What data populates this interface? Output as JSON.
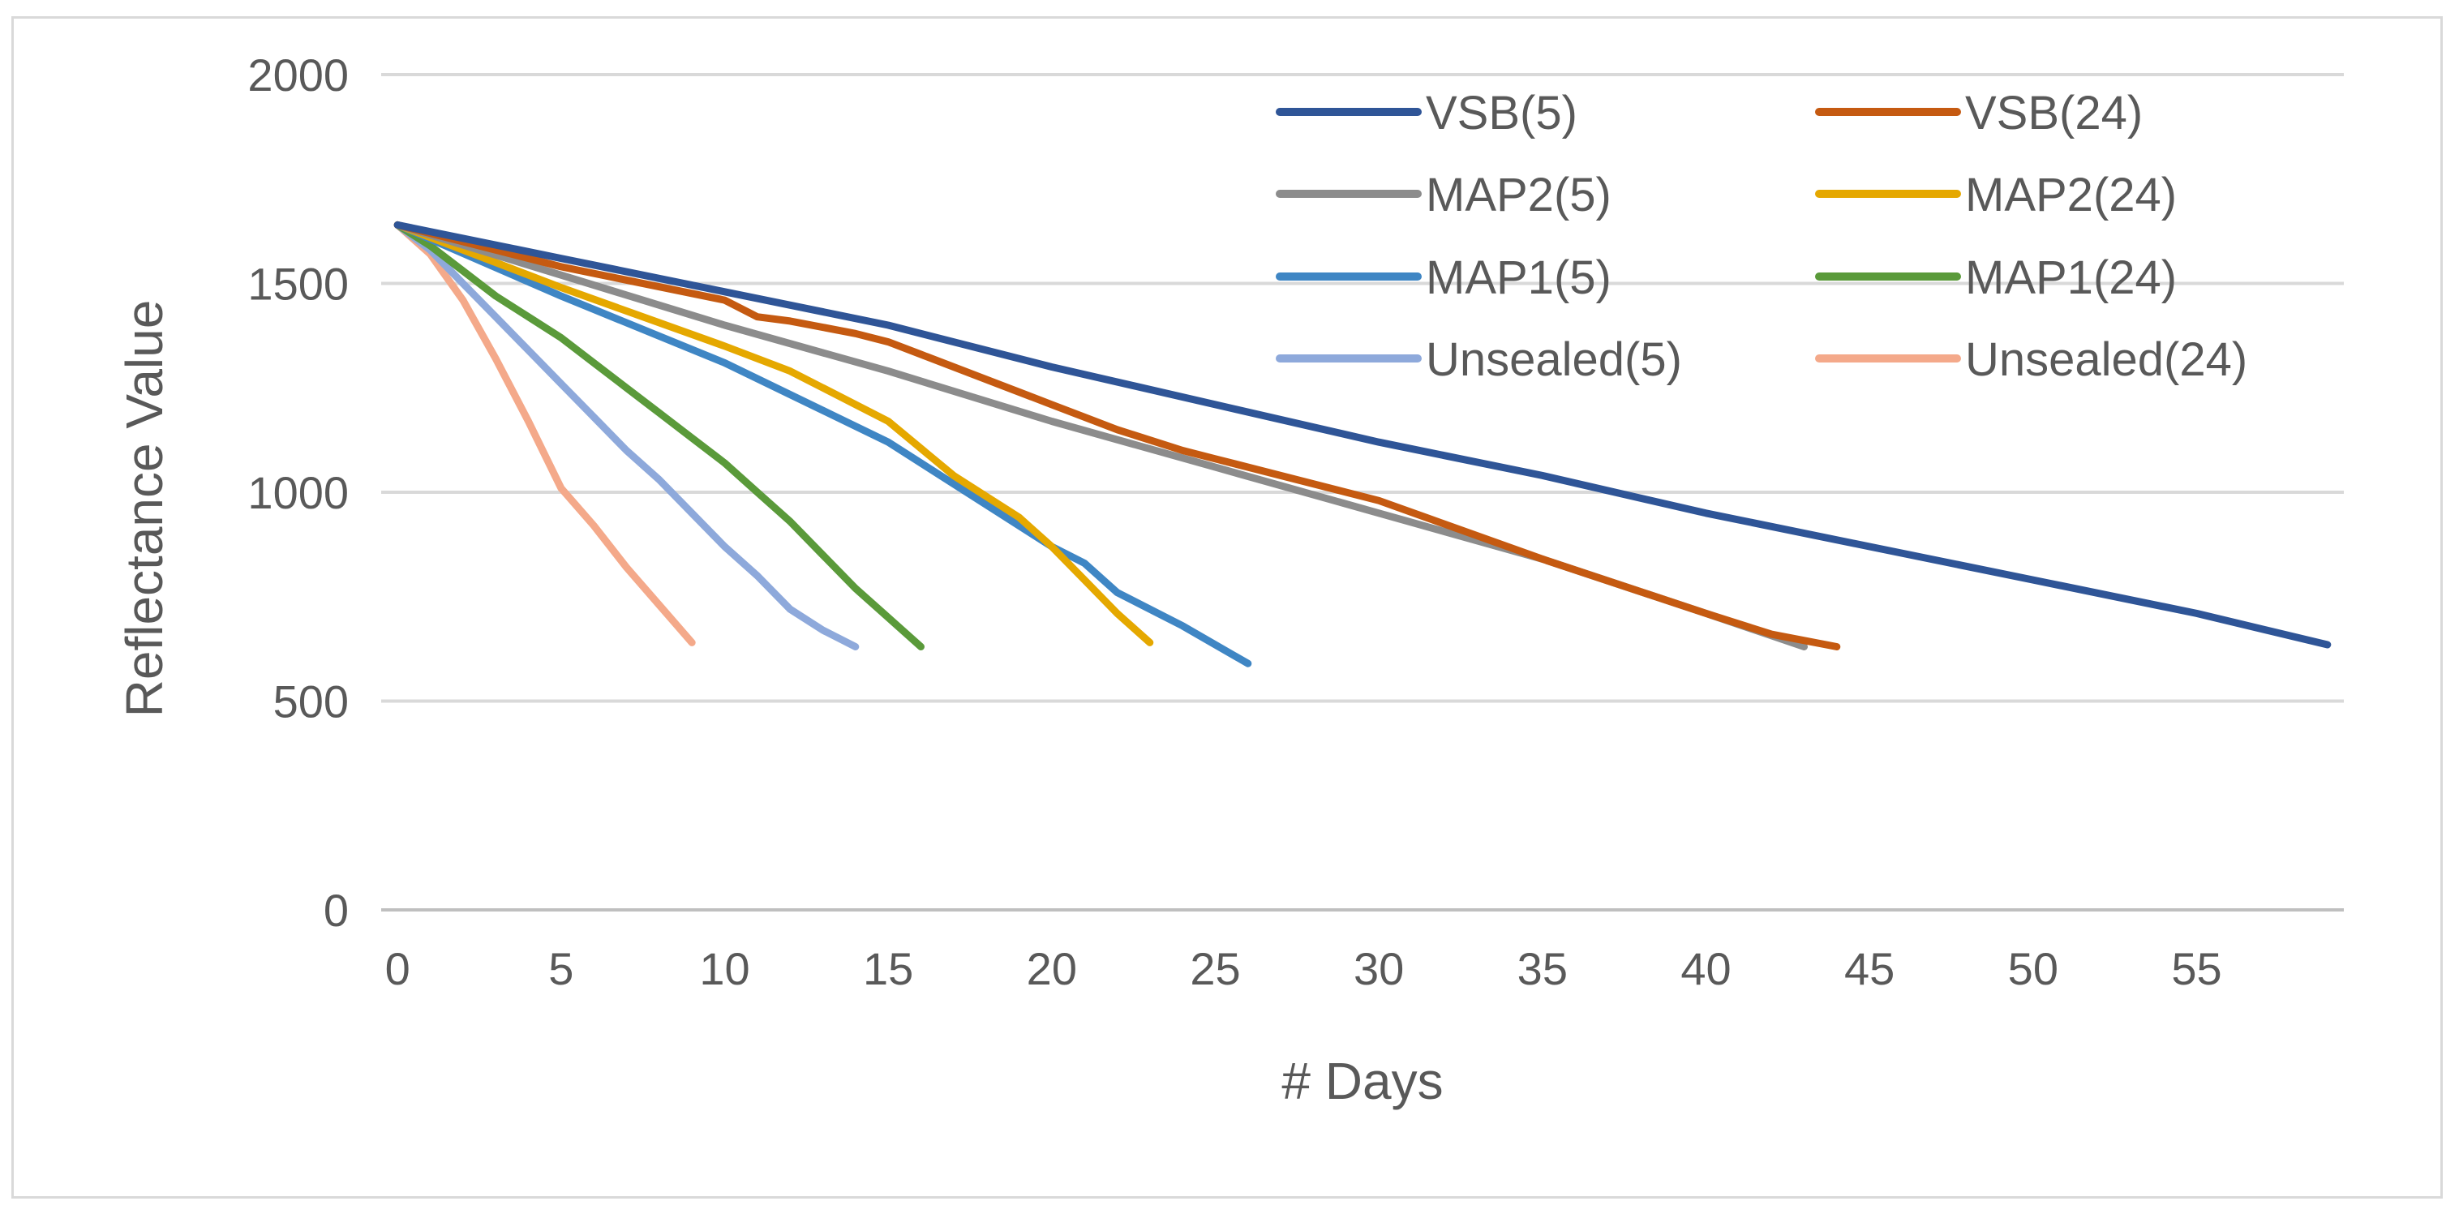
{
  "chart_data": {
    "type": "line",
    "title": "",
    "xlabel": "# Days",
    "ylabel": "Reflectance Value",
    "xlim": [
      -0.5,
      59.5
    ],
    "ylim": [
      0,
      2000
    ],
    "xticks": [
      0,
      5,
      10,
      15,
      20,
      25,
      30,
      35,
      40,
      45,
      50,
      55
    ],
    "yticks": [
      0,
      500,
      1000,
      1500,
      2000
    ],
    "grid": "horizontal",
    "legend_position": "top-right",
    "series": [
      {
        "name": "VSB(5)",
        "color": "#2F5597",
        "x": [
          0,
          5,
          10,
          15,
          20,
          25,
          30,
          35,
          40,
          45,
          50,
          55,
          59
        ],
        "y": [
          1640,
          1560,
          1480,
          1400,
          1300,
          1210,
          1120,
          1040,
          950,
          870,
          790,
          710,
          635
        ]
      },
      {
        "name": "VSB(24)",
        "color": "#C55A11",
        "x": [
          0,
          5,
          10,
          11,
          12,
          14,
          15,
          16,
          20,
          22,
          24,
          25,
          30,
          35,
          40,
          42,
          44
        ],
        "y": [
          1640,
          1540,
          1460,
          1420,
          1410,
          1380,
          1360,
          1330,
          1210,
          1150,
          1100,
          1080,
          980,
          840,
          710,
          660,
          630
        ]
      },
      {
        "name": "MAP2(5)",
        "color": "#8C8C8C",
        "x": [
          0,
          5,
          10,
          15,
          20,
          25,
          30,
          35,
          40,
          43
        ],
        "y": [
          1640,
          1520,
          1400,
          1290,
          1170,
          1060,
          950,
          840,
          710,
          630
        ]
      },
      {
        "name": "MAP2(24)",
        "color": "#E5A800",
        "x": [
          0,
          5,
          10,
          12,
          15,
          17,
          19,
          20,
          21,
          22,
          23
        ],
        "y": [
          1640,
          1490,
          1350,
          1290,
          1170,
          1040,
          940,
          870,
          790,
          710,
          640
        ]
      },
      {
        "name": "MAP1(5)",
        "color": "#3F86C4",
        "x": [
          0,
          5,
          10,
          15,
          20,
          21,
          22,
          24,
          26
        ],
        "y": [
          1640,
          1470,
          1310,
          1120,
          870,
          830,
          760,
          680,
          590
        ]
      },
      {
        "name": "MAP1(24)",
        "color": "#5A9A3A",
        "x": [
          0,
          1,
          2,
          3,
          4,
          5,
          6,
          7,
          8,
          9,
          10,
          11,
          12,
          13,
          14,
          15,
          16
        ],
        "y": [
          1640,
          1590,
          1530,
          1470,
          1420,
          1370,
          1310,
          1250,
          1190,
          1130,
          1070,
          1000,
          930,
          850,
          770,
          700,
          630
        ]
      },
      {
        "name": "Unsealed(5)",
        "color": "#8EA9DB",
        "x": [
          0,
          1,
          2,
          3,
          4,
          5,
          6,
          7,
          8,
          9,
          10,
          11,
          12,
          13,
          14
        ],
        "y": [
          1640,
          1580,
          1500,
          1420,
          1340,
          1260,
          1180,
          1100,
          1030,
          950,
          870,
          800,
          720,
          670,
          630
        ]
      },
      {
        "name": "Unsealed(24)",
        "color": "#F4A98A",
        "x": [
          0,
          1,
          2,
          3,
          4,
          5,
          6,
          7,
          8,
          9
        ],
        "y": [
          1640,
          1570,
          1460,
          1320,
          1170,
          1010,
          920,
          820,
          730,
          640
        ]
      }
    ]
  }
}
